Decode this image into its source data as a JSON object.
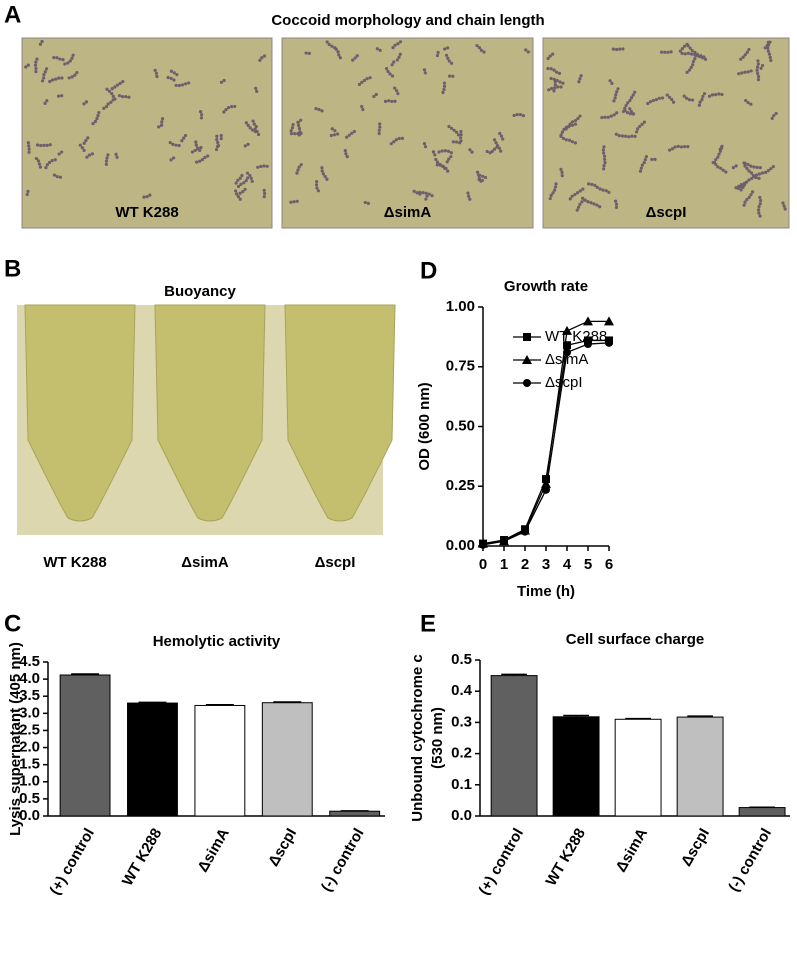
{
  "figure": {
    "panels": [
      {
        "label": "A",
        "title": "Coccoid morphology and chain length",
        "image_labels": [
          "WT K288",
          "ΔsimA",
          "ΔscpI"
        ]
      },
      {
        "label": "B",
        "title": "Buoyancy",
        "image_labels": [
          "WT K288",
          "ΔsimA",
          "ΔscpI"
        ]
      }
    ]
  },
  "chart_data": [
    {
      "type": "line",
      "label": "D",
      "title": "Growth rate",
      "xlabel": "Time (h)",
      "ylabel": "OD (600 nm)",
      "x": [
        0,
        1,
        2,
        3,
        4,
        5,
        6
      ],
      "xlim": [
        0,
        6
      ],
      "xticks": [
        0,
        1,
        2,
        3,
        4,
        5,
        6
      ],
      "ylim": [
        0,
        1
      ],
      "yticks": [
        {
          "value": 0,
          "label": "0.00"
        },
        0.25,
        {
          "value": 0.5,
          "label": "0.50"
        },
        0.75,
        {
          "value": 1,
          "label": "1.00"
        }
      ],
      "series": [
        {
          "name": "WT K288",
          "color": "#000000",
          "marker": "square",
          "values": [
            0.01,
            0.025,
            0.07,
            0.28,
            0.84,
            0.86,
            0.86
          ]
        },
        {
          "name": "ΔsimA",
          "color": "#000000",
          "marker": "triangle",
          "values": [
            0.01,
            0.02,
            0.065,
            0.26,
            0.9,
            0.94,
            0.94
          ]
        },
        {
          "name": "ΔscpI",
          "color": "#000000",
          "marker": "circle",
          "values": [
            0.005,
            0.02,
            0.06,
            0.235,
            0.81,
            0.845,
            0.85
          ]
        }
      ]
    },
    {
      "type": "bar",
      "label": "C",
      "title": "Hemolytic activity",
      "ylabel": [
        "Lysis supernatant (405 nm)"
      ],
      "categories": [
        "(+) control",
        "WT K288",
        "ΔsimA",
        "ΔscpI",
        "(-) control"
      ],
      "values": [
        4.12,
        3.3,
        3.23,
        3.31,
        0.14
      ],
      "errors": [
        0.03,
        0.02,
        0.02,
        0.02,
        0.01
      ],
      "colors": [
        "#606060",
        "#000000",
        "#ffffff",
        "#bfbfbf",
        "#606060"
      ],
      "ylim": [
        0,
        4.5
      ],
      "yticks": [
        {
          "value": 0,
          "label": "0.0"
        },
        0.5,
        {
          "value": 1,
          "label": "1.0"
        },
        1.5,
        {
          "value": 2,
          "label": "2.0"
        },
        2.5,
        {
          "value": 3,
          "label": "3.0"
        },
        3.5,
        {
          "value": 4,
          "label": "4.0"
        },
        4.5
      ]
    },
    {
      "type": "bar",
      "label": "E",
      "title": "Cell surface charge",
      "ylabel": [
        "Unbound cytochrome c",
        "(530 nm)"
      ],
      "categories": [
        "(+) control",
        "WT K288",
        "ΔsimA",
        "ΔscpI",
        "(-) control"
      ],
      "values": [
        0.45,
        0.318,
        0.31,
        0.317,
        0.027
      ],
      "errors": [
        0.004,
        0.004,
        0.002,
        0.003,
        0.001
      ],
      "colors": [
        "#606060",
        "#000000",
        "#ffffff",
        "#bfbfbf",
        "#606060"
      ],
      "ylim": [
        0,
        0.5
      ],
      "yticks": [
        {
          "value": 0,
          "label": "0.0"
        },
        0.1,
        0.2,
        0.3,
        0.4,
        0.5
      ]
    }
  ]
}
